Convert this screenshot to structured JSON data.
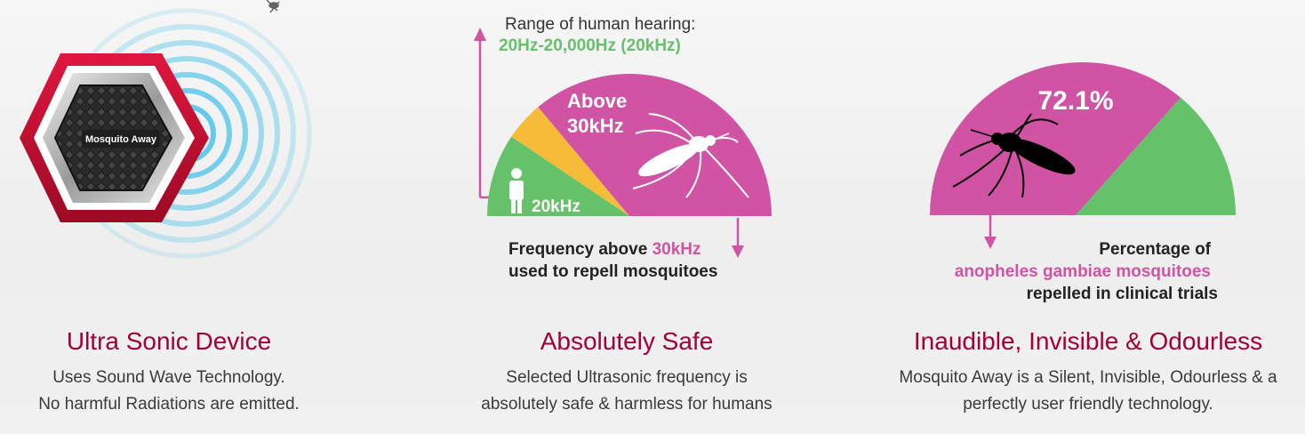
{
  "device": {
    "device_label": "Mosquito Away",
    "title": "Ultra Sonic Device",
    "description_lines": [
      "Uses Sound Wave Technology.",
      "No harmful Radiations are emitted."
    ]
  },
  "safe": {
    "hearing_label": "Range of human hearing:",
    "hearing_range": "20Hz-20,000Hz (20kHz)",
    "above_label_line1": "Above",
    "above_label_line2": "30kHz",
    "human_limit_label": "20kHz",
    "caption_line1_prefix": "Frequency above ",
    "caption_line1_highlight": "30kHz",
    "caption_line2": "used to repell mosquitoes",
    "title": "Absolutely Safe",
    "description_lines": [
      "Selected Ultrasonic frequency is",
      "absolutely safe & harmless for humans"
    ]
  },
  "odourless": {
    "percentage_label": "72.1%",
    "repelled_percent": 72.1,
    "caption_line1": "Percentage of",
    "caption_line2": "anopheles gambiae mosquitoes",
    "caption_line3": "repelled in clinical trials",
    "title": "Inaudible, Invisible & Odourless",
    "description_lines": [
      "Mosquito Away is a Silent, Invisible, Odourless & a",
      "perfectly user friendly technology."
    ]
  },
  "colors": {
    "brand_red": "#a50034",
    "magenta": "#d054a3",
    "green": "#66c16b",
    "yellow": "#f6bb39",
    "hex_frame": "#c8102e",
    "wave": "#54c6ea"
  },
  "icons": [
    "mosquito-icon",
    "human-icon",
    "hexagon-device-icon",
    "sound-wave-icon"
  ]
}
